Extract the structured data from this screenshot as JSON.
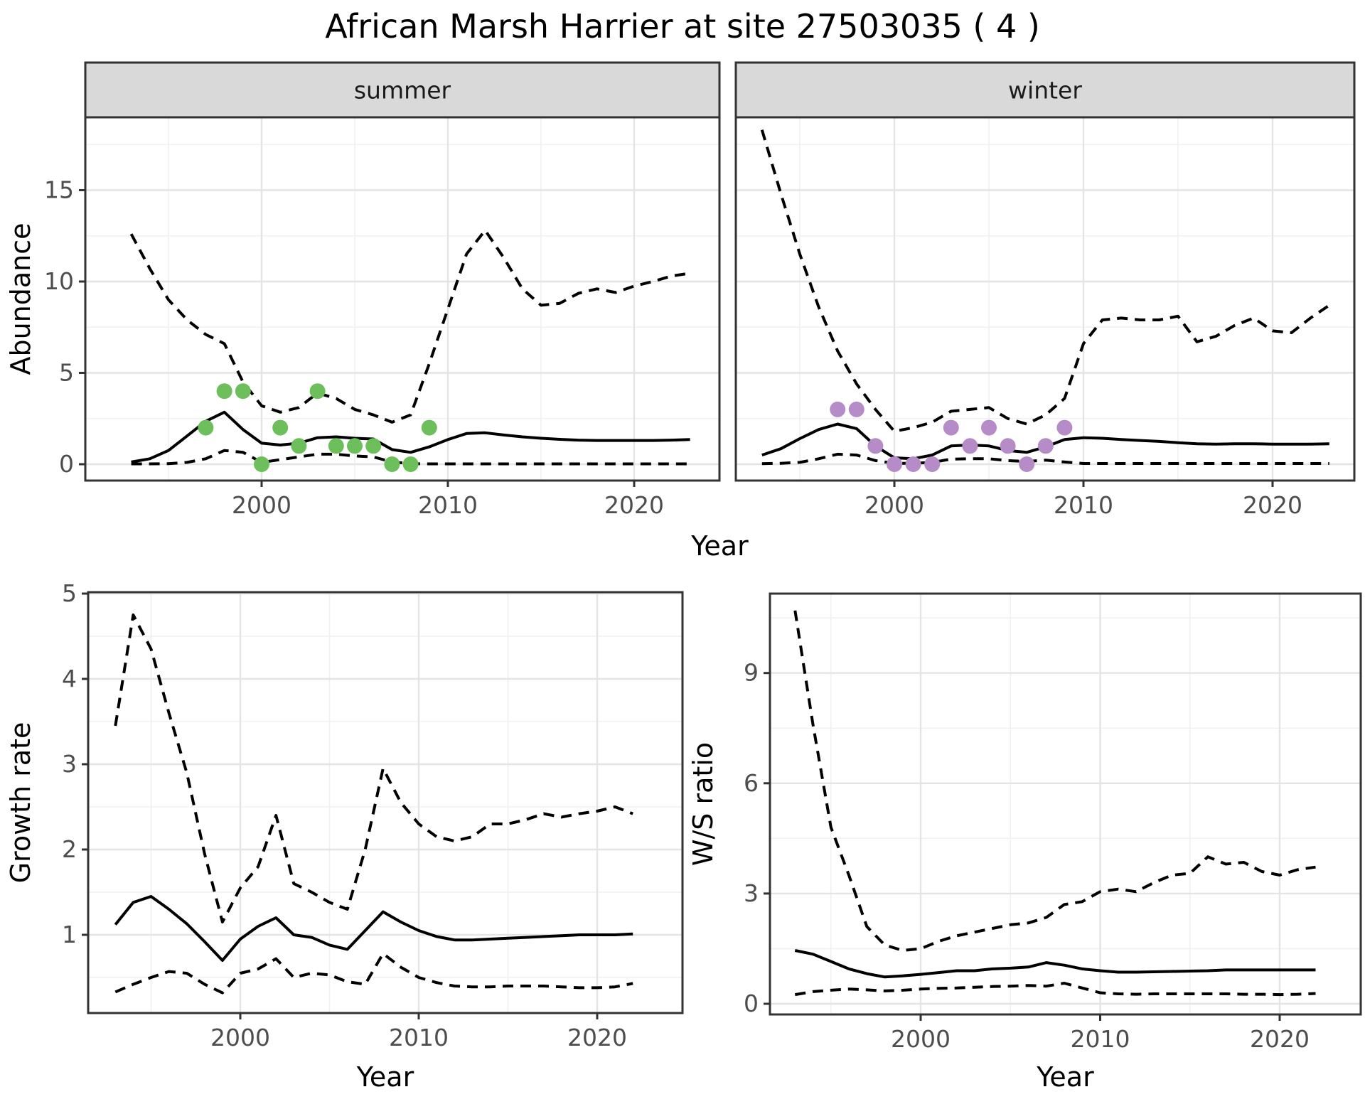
{
  "title": "African Marsh Harrier at site 27503035 ( 4 )",
  "colors": {
    "summer_points": "#6cbf5a",
    "winter_points": "#b58cc8",
    "line": "#000000",
    "strip_fill": "#d9d9d9",
    "strip_text": "#1a1a1a",
    "grid_major": "#e4e4e4",
    "grid_minor": "#f0f0f0",
    "axis_text": "#4d4d4d",
    "panel_border": "#333333",
    "panel_bg": "#ffffff"
  },
  "chart_data": [
    {
      "id": "abundance_summer",
      "type": "line",
      "facet_label": "summer",
      "xlabel": "Year",
      "ylabel": "Abundance",
      "x_range": [
        1993,
        2023
      ],
      "x_step": 1,
      "x_ticks": [
        2000,
        2010,
        2020
      ],
      "x_minor": [
        1995,
        2005,
        2015
      ],
      "y_ticks": [
        0,
        5,
        10,
        15
      ],
      "y_minor": [
        2.5,
        7.5,
        12.5,
        17.5
      ],
      "ylim": [
        -0.7,
        19.0
      ],
      "xlim": [
        1990.5,
        2024.6
      ],
      "grid": true,
      "legend": "none",
      "series": [
        {
          "name": "upper_95ci",
          "linetype": "dashed",
          "values": [
            12.6,
            10.7,
            9.0,
            7.9,
            7.1,
            6.6,
            4.5,
            3.2,
            2.85,
            3.1,
            3.9,
            3.6,
            3.0,
            2.7,
            2.3,
            2.7,
            5.5,
            8.5,
            11.5,
            12.8,
            11.3,
            9.6,
            8.7,
            8.8,
            9.35,
            9.6,
            9.4,
            9.75,
            10.0,
            10.3,
            10.45
          ]
        },
        {
          "name": "fit",
          "linetype": "solid",
          "values": [
            0.12,
            0.3,
            0.75,
            1.55,
            2.35,
            2.85,
            1.9,
            1.15,
            1.05,
            1.15,
            1.45,
            1.5,
            1.42,
            1.38,
            0.8,
            0.65,
            0.95,
            1.35,
            1.68,
            1.72,
            1.6,
            1.5,
            1.42,
            1.36,
            1.32,
            1.3,
            1.3,
            1.3,
            1.3,
            1.32,
            1.35
          ]
        },
        {
          "name": "lower_95ci",
          "linetype": "dashed",
          "values": [
            0.02,
            0.02,
            0.03,
            0.1,
            0.3,
            0.75,
            0.65,
            0.1,
            0.25,
            0.4,
            0.55,
            0.55,
            0.45,
            0.4,
            0.12,
            0.03,
            0.02,
            0.02,
            0.02,
            0.02,
            0.02,
            0.02,
            0.02,
            0.02,
            0.02,
            0.02,
            0.02,
            0.02,
            0.02,
            0.02,
            0.02
          ]
        }
      ],
      "points": {
        "name": "observed_counts",
        "color": "#6cbf5a",
        "data": [
          [
            1997,
            2
          ],
          [
            1998,
            4
          ],
          [
            1999,
            4
          ],
          [
            2000,
            0
          ],
          [
            2001,
            2
          ],
          [
            2002,
            1
          ],
          [
            2003,
            4
          ],
          [
            2004,
            1
          ],
          [
            2005,
            1
          ],
          [
            2006,
            1
          ],
          [
            2007,
            0
          ],
          [
            2008,
            0
          ],
          [
            2009,
            2
          ]
        ]
      }
    },
    {
      "id": "abundance_winter",
      "type": "line",
      "facet_label": "winter",
      "xlabel": "Year",
      "ylabel": "Abundance",
      "x_range": [
        1993,
        2023
      ],
      "x_step": 1,
      "x_ticks": [
        2000,
        2010,
        2020
      ],
      "x_minor": [
        1995,
        2005,
        2015
      ],
      "y_ticks": [
        0,
        5,
        10,
        15
      ],
      "y_minor": [
        2.5,
        7.5,
        12.5,
        17.5
      ],
      "ylim": [
        -0.7,
        19.0
      ],
      "xlim": [
        1991.4,
        2024.3
      ],
      "grid": true,
      "legend": "none",
      "series": [
        {
          "name": "upper_95ci",
          "linetype": "dashed",
          "values": [
            18.3,
            14.8,
            11.5,
            8.6,
            6.2,
            4.4,
            3.0,
            1.8,
            2.0,
            2.3,
            2.9,
            3.0,
            3.1,
            2.5,
            2.2,
            2.7,
            3.6,
            6.6,
            7.9,
            8.0,
            7.9,
            7.9,
            8.1,
            6.7,
            7.0,
            7.6,
            8.0,
            7.3,
            7.2,
            8.0,
            8.7
          ]
        },
        {
          "name": "fit",
          "linetype": "solid",
          "values": [
            0.5,
            0.85,
            1.4,
            1.9,
            2.2,
            1.95,
            1.0,
            0.35,
            0.3,
            0.5,
            1.0,
            1.05,
            1.0,
            0.75,
            0.65,
            0.95,
            1.35,
            1.45,
            1.42,
            1.35,
            1.3,
            1.25,
            1.18,
            1.12,
            1.1,
            1.12,
            1.12,
            1.1,
            1.1,
            1.1,
            1.12
          ]
        },
        {
          "name": "lower_95ci",
          "linetype": "dashed",
          "values": [
            0.03,
            0.05,
            0.1,
            0.3,
            0.55,
            0.5,
            0.2,
            0.05,
            0.05,
            0.1,
            0.28,
            0.3,
            0.3,
            0.2,
            0.15,
            0.22,
            0.12,
            0.04,
            0.04,
            0.04,
            0.04,
            0.04,
            0.04,
            0.04,
            0.04,
            0.04,
            0.04,
            0.04,
            0.04,
            0.04,
            0.04
          ]
        }
      ],
      "points": {
        "name": "observed_counts",
        "color": "#b58cc8",
        "data": [
          [
            1997,
            3
          ],
          [
            1998,
            3
          ],
          [
            1999,
            1
          ],
          [
            2000,
            0
          ],
          [
            2001,
            0
          ],
          [
            2002,
            0
          ],
          [
            2003,
            2
          ],
          [
            2004,
            1
          ],
          [
            2005,
            2
          ],
          [
            2006,
            1
          ],
          [
            2007,
            0
          ],
          [
            2008,
            1
          ],
          [
            2009,
            2
          ]
        ]
      }
    },
    {
      "id": "growth_rate",
      "type": "line",
      "facet_label": null,
      "xlabel": "Year",
      "ylabel": "Growth rate",
      "x_range": [
        1993,
        2022
      ],
      "x_step": 1,
      "x_ticks": [
        2000,
        2010,
        2020
      ],
      "x_minor": [
        1995,
        2005,
        2015
      ],
      "y_ticks": [
        1,
        2,
        3,
        4,
        5
      ],
      "y_minor": [
        0.5,
        1.5,
        2.5,
        3.5,
        4.5
      ],
      "ylim": [
        0.08,
        5.02
      ],
      "xlim": [
        1991.5,
        2024.8
      ],
      "grid": true,
      "legend": "none",
      "series": [
        {
          "name": "upper_95ci",
          "linetype": "dashed",
          "values": [
            3.45,
            4.75,
            4.35,
            3.6,
            2.9,
            1.95,
            1.15,
            1.55,
            1.8,
            2.4,
            1.6,
            1.5,
            1.38,
            1.3,
            2.0,
            2.95,
            2.55,
            2.3,
            2.15,
            2.1,
            2.15,
            2.3,
            2.3,
            2.35,
            2.42,
            2.38,
            2.42,
            2.45,
            2.5,
            2.42
          ]
        },
        {
          "name": "fit",
          "linetype": "solid",
          "values": [
            1.12,
            1.38,
            1.45,
            1.3,
            1.13,
            0.92,
            0.7,
            0.95,
            1.1,
            1.2,
            1.0,
            0.97,
            0.88,
            0.83,
            1.05,
            1.27,
            1.15,
            1.05,
            0.98,
            0.94,
            0.94,
            0.95,
            0.96,
            0.97,
            0.98,
            0.99,
            1.0,
            1.0,
            1.0,
            1.01
          ]
        },
        {
          "name": "lower_95ci",
          "linetype": "dashed",
          "values": [
            0.33,
            0.42,
            0.5,
            0.57,
            0.55,
            0.42,
            0.32,
            0.55,
            0.6,
            0.72,
            0.5,
            0.55,
            0.53,
            0.45,
            0.42,
            0.78,
            0.62,
            0.5,
            0.44,
            0.4,
            0.39,
            0.39,
            0.4,
            0.4,
            0.4,
            0.39,
            0.38,
            0.38,
            0.39,
            0.43
          ]
        }
      ],
      "points": null
    },
    {
      "id": "ws_ratio",
      "type": "line",
      "facet_label": null,
      "xlabel": "Year",
      "ylabel": "W/S ratio",
      "x_range": [
        1993,
        2022
      ],
      "x_step": 1,
      "x_ticks": [
        2000,
        2010,
        2020
      ],
      "x_minor": [
        1995,
        2005,
        2015
      ],
      "y_ticks": [
        0,
        3,
        6,
        9
      ],
      "y_minor": [
        1.5,
        4.5,
        7.5,
        10.5
      ],
      "ylim": [
        -0.45,
        11.2
      ],
      "xlim": [
        1991.6,
        2024.5
      ],
      "grid": true,
      "legend": "none",
      "series": [
        {
          "name": "upper_95ci",
          "linetype": "dashed",
          "values": [
            10.7,
            7.6,
            4.8,
            3.5,
            2.1,
            1.6,
            1.45,
            1.5,
            1.7,
            1.85,
            1.95,
            2.05,
            2.15,
            2.2,
            2.35,
            2.7,
            2.78,
            3.05,
            3.12,
            3.05,
            3.3,
            3.5,
            3.55,
            4.0,
            3.8,
            3.85,
            3.6,
            3.5,
            3.65,
            3.72
          ]
        },
        {
          "name": "fit",
          "linetype": "solid",
          "values": [
            1.45,
            1.35,
            1.15,
            0.95,
            0.82,
            0.73,
            0.76,
            0.8,
            0.85,
            0.9,
            0.9,
            0.95,
            0.97,
            1.0,
            1.12,
            1.05,
            0.95,
            0.9,
            0.86,
            0.86,
            0.87,
            0.88,
            0.89,
            0.9,
            0.92,
            0.92,
            0.92,
            0.92,
            0.92,
            0.92
          ]
        },
        {
          "name": "lower_95ci",
          "linetype": "dashed",
          "values": [
            0.25,
            0.33,
            0.37,
            0.4,
            0.38,
            0.35,
            0.37,
            0.4,
            0.42,
            0.43,
            0.45,
            0.47,
            0.48,
            0.5,
            0.48,
            0.56,
            0.43,
            0.3,
            0.27,
            0.26,
            0.27,
            0.27,
            0.27,
            0.27,
            0.27,
            0.26,
            0.26,
            0.25,
            0.26,
            0.28
          ]
        }
      ],
      "points": null
    }
  ]
}
